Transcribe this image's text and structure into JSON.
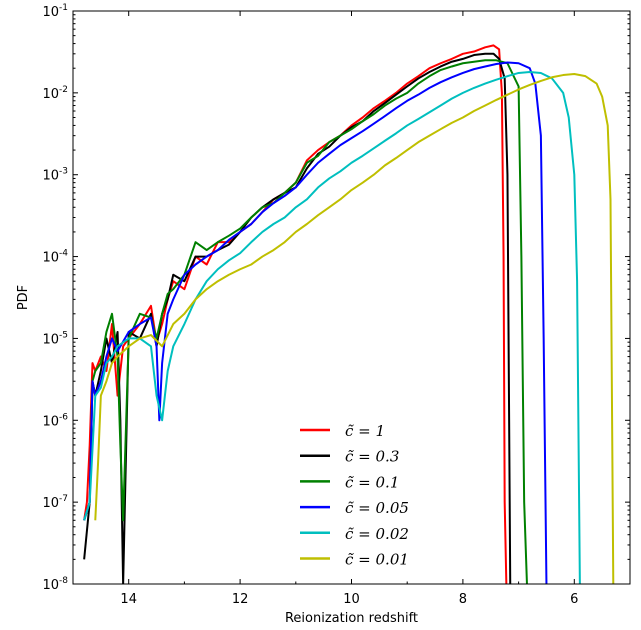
{
  "chart_data": {
    "type": "line",
    "xlabel": "Reionization redshift",
    "ylabel": "PDF",
    "xlim": [
      15.0,
      5.0
    ],
    "x_inverted": true,
    "yscale": "log",
    "ylim": [
      1e-08,
      0.1
    ],
    "x_ticks": [
      14,
      12,
      10,
      8,
      6
    ],
    "y_ticks": [
      {
        "value": 1e-08,
        "label_base": "10",
        "label_exp": "-8"
      },
      {
        "value": 1e-07,
        "label_base": "10",
        "label_exp": "-7"
      },
      {
        "value": 1e-06,
        "label_base": "10",
        "label_exp": "-6"
      },
      {
        "value": 1e-05,
        "label_base": "10",
        "label_exp": "-5"
      },
      {
        "value": 0.0001,
        "label_base": "10",
        "label_exp": "-4"
      },
      {
        "value": 0.001,
        "label_base": "10",
        "label_exp": "-3"
      },
      {
        "value": 0.01,
        "label_base": "10",
        "label_exp": "-2"
      },
      {
        "value": 0.1,
        "label_base": "10",
        "label_exp": "-1"
      }
    ],
    "grid": false,
    "legend_position": "lower-center",
    "series": [
      {
        "name": "c̃ = 1",
        "color": "#ff0000",
        "x": [
          14.8,
          14.75,
          14.7,
          14.65,
          14.6,
          14.5,
          14.4,
          14.3,
          14.2,
          14.1,
          14.0,
          13.8,
          13.6,
          13.5,
          13.4,
          13.3,
          13.2,
          13.0,
          12.8,
          12.6,
          12.4,
          12.2,
          12.0,
          11.8,
          11.6,
          11.4,
          11.2,
          11.0,
          10.8,
          10.6,
          10.4,
          10.2,
          10.0,
          9.8,
          9.6,
          9.4,
          9.2,
          9.0,
          8.8,
          8.6,
          8.4,
          8.2,
          8.0,
          7.8,
          7.6,
          7.45,
          7.35,
          7.3,
          7.27,
          7.25,
          7.22
        ],
        "y": [
          6e-08,
          1e-07,
          5e-07,
          5e-06,
          4e-06,
          6e-06,
          4e-06,
          1.5e-05,
          2e-06,
          8e-06,
          1e-05,
          1.5e-05,
          2.5e-05,
          9e-06,
          1.5e-05,
          3e-05,
          5e-05,
          4e-05,
          0.0001,
          8e-05,
          0.00015,
          0.00015,
          0.0002,
          0.00025,
          0.00035,
          0.0005,
          0.0006,
          0.0008,
          0.0015,
          0.002,
          0.0025,
          0.003,
          0.004,
          0.005,
          0.0065,
          0.008,
          0.01,
          0.013,
          0.016,
          0.02,
          0.023,
          0.026,
          0.03,
          0.032,
          0.036,
          0.038,
          0.034,
          0.01,
          0.0001,
          1e-07,
          1e-08
        ]
      },
      {
        "name": "c̃ = 0.3",
        "color": "#000000",
        "x": [
          14.8,
          14.7,
          14.65,
          14.6,
          14.5,
          14.4,
          14.3,
          14.2,
          14.15,
          14.1,
          14.0,
          13.8,
          13.6,
          13.5,
          13.4,
          13.3,
          13.2,
          13.0,
          12.8,
          12.6,
          12.4,
          12.2,
          12.0,
          11.8,
          11.6,
          11.4,
          11.2,
          11.0,
          10.8,
          10.6,
          10.4,
          10.2,
          10.0,
          9.8,
          9.6,
          9.4,
          9.2,
          9.0,
          8.8,
          8.6,
          8.4,
          8.2,
          8.0,
          7.8,
          7.6,
          7.45,
          7.35,
          7.25,
          7.2,
          7.17,
          7.15
        ],
        "y": [
          2e-08,
          1e-07,
          3e-06,
          2e-06,
          4e-06,
          1e-05,
          5e-06,
          1.2e-05,
          1e-06,
          1e-08,
          1.2e-05,
          1e-05,
          2e-05,
          8e-06,
          2e-05,
          3e-05,
          6e-05,
          5e-05,
          0.0001,
          0.0001,
          0.00012,
          0.00014,
          0.0002,
          0.0003,
          0.0004,
          0.0005,
          0.0006,
          0.0007,
          0.0012,
          0.0018,
          0.0022,
          0.003,
          0.0038,
          0.0045,
          0.006,
          0.0075,
          0.0095,
          0.012,
          0.015,
          0.018,
          0.021,
          0.024,
          0.026,
          0.029,
          0.03,
          0.03,
          0.026,
          0.015,
          0.001,
          1e-06,
          1e-08
        ]
      },
      {
        "name": "c̃ = 0.1",
        "color": "#008000",
        "x": [
          14.8,
          14.7,
          14.65,
          14.6,
          14.5,
          14.4,
          14.3,
          14.2,
          14.15,
          14.1,
          14.0,
          13.8,
          13.6,
          13.5,
          13.4,
          13.3,
          13.2,
          13.0,
          12.8,
          12.6,
          12.4,
          12.2,
          12.0,
          11.8,
          11.6,
          11.4,
          11.2,
          11.0,
          10.8,
          10.6,
          10.4,
          10.2,
          10.0,
          9.8,
          9.6,
          9.4,
          9.2,
          9.0,
          8.8,
          8.6,
          8.4,
          8.2,
          8.0,
          7.8,
          7.6,
          7.4,
          7.2,
          7.0,
          6.95,
          6.9,
          6.85
        ],
        "y": [
          6e-08,
          1e-07,
          3e-06,
          4e-06,
          5e-06,
          1.2e-05,
          2e-05,
          6e-06,
          5e-07,
          6e-08,
          1e-05,
          2e-05,
          1.8e-05,
          1e-05,
          2e-05,
          3.5e-05,
          4e-05,
          6e-05,
          0.00015,
          0.00012,
          0.00015,
          0.00018,
          0.00022,
          0.0003,
          0.0004,
          0.00045,
          0.0006,
          0.0008,
          0.0014,
          0.0017,
          0.0025,
          0.003,
          0.0036,
          0.0045,
          0.0055,
          0.007,
          0.0085,
          0.01,
          0.013,
          0.016,
          0.019,
          0.021,
          0.023,
          0.024,
          0.025,
          0.025,
          0.023,
          0.012,
          0.0001,
          1e-07,
          1e-08
        ]
      },
      {
        "name": "c̃ = 0.05",
        "color": "#0000ff",
        "x": [
          14.8,
          14.7,
          14.65,
          14.6,
          14.5,
          14.4,
          14.3,
          14.2,
          14.0,
          13.8,
          13.6,
          13.5,
          13.45,
          13.4,
          13.3,
          13.2,
          13.0,
          12.8,
          12.6,
          12.4,
          12.2,
          12.0,
          11.8,
          11.6,
          11.4,
          11.2,
          11.0,
          10.8,
          10.6,
          10.4,
          10.2,
          10.0,
          9.8,
          9.6,
          9.4,
          9.2,
          9.0,
          8.8,
          8.6,
          8.4,
          8.2,
          8.0,
          7.8,
          7.6,
          7.4,
          7.2,
          7.0,
          6.8,
          6.7,
          6.6,
          6.55,
          6.5
        ],
        "y": [
          6e-08,
          1e-07,
          3e-06,
          2e-06,
          3e-06,
          6e-06,
          1e-05,
          7e-06,
          1.2e-05,
          1.5e-05,
          1.8e-05,
          8e-06,
          1e-06,
          5e-06,
          2e-05,
          3e-05,
          6e-05,
          8e-05,
          0.0001,
          0.00012,
          0.00016,
          0.0002,
          0.00025,
          0.00035,
          0.00045,
          0.00055,
          0.0007,
          0.001,
          0.0014,
          0.0018,
          0.0023,
          0.0028,
          0.0034,
          0.0042,
          0.0052,
          0.0065,
          0.008,
          0.0095,
          0.0115,
          0.0135,
          0.0155,
          0.0175,
          0.0195,
          0.021,
          0.0225,
          0.0235,
          0.023,
          0.02,
          0.013,
          0.003,
          1e-05,
          1e-08
        ]
      },
      {
        "name": "c̃ = 0.02",
        "color": "#00bfbf",
        "x": [
          14.8,
          14.7,
          14.6,
          14.5,
          14.4,
          14.3,
          14.2,
          14.0,
          13.8,
          13.6,
          13.5,
          13.4,
          13.3,
          13.2,
          13.0,
          12.8,
          12.6,
          12.4,
          12.2,
          12.0,
          11.8,
          11.6,
          11.4,
          11.2,
          11.0,
          10.8,
          10.6,
          10.4,
          10.2,
          10.0,
          9.8,
          9.6,
          9.4,
          9.2,
          9.0,
          8.8,
          8.6,
          8.4,
          8.2,
          8.0,
          7.8,
          7.6,
          7.4,
          7.2,
          7.0,
          6.8,
          6.6,
          6.4,
          6.2,
          6.1,
          6.0,
          5.95,
          5.9
        ],
        "y": [
          6e-08,
          1e-07,
          2e-06,
          2.5e-06,
          5e-06,
          6e-06,
          8e-06,
          1e-05,
          1e-05,
          8e-06,
          2e-06,
          1e-06,
          4e-06,
          8e-06,
          1.5e-05,
          3e-05,
          5e-05,
          7e-05,
          9e-05,
          0.00011,
          0.00015,
          0.0002,
          0.00025,
          0.0003,
          0.0004,
          0.0005,
          0.0007,
          0.0009,
          0.0011,
          0.0014,
          0.0017,
          0.0021,
          0.0026,
          0.0032,
          0.004,
          0.0048,
          0.0058,
          0.007,
          0.0085,
          0.01,
          0.0115,
          0.013,
          0.0145,
          0.016,
          0.0175,
          0.018,
          0.0175,
          0.015,
          0.01,
          0.005,
          0.001,
          5e-05,
          1e-08
        ]
      },
      {
        "name": "c̃ = 0.01",
        "color": "#bfbf00",
        "x": [
          14.6,
          14.55,
          14.5,
          14.4,
          14.3,
          14.2,
          14.0,
          13.8,
          13.6,
          13.4,
          13.2,
          13.0,
          12.8,
          12.6,
          12.4,
          12.2,
          12.0,
          11.8,
          11.6,
          11.4,
          11.2,
          11.0,
          10.8,
          10.6,
          10.4,
          10.2,
          10.0,
          9.8,
          9.6,
          9.4,
          9.2,
          9.0,
          8.8,
          8.6,
          8.4,
          8.2,
          8.0,
          7.8,
          7.6,
          7.4,
          7.2,
          7.0,
          6.8,
          6.6,
          6.4,
          6.2,
          6.0,
          5.8,
          5.6,
          5.5,
          5.4,
          5.35,
          5.3
        ],
        "y": [
          6e-08,
          3e-07,
          2e-06,
          3e-06,
          5e-06,
          6e-06,
          8e-06,
          1e-05,
          1.1e-05,
          8e-06,
          1.5e-05,
          2e-05,
          3e-05,
          4e-05,
          5e-05,
          6e-05,
          7e-05,
          8e-05,
          0.0001,
          0.00012,
          0.00015,
          0.0002,
          0.00025,
          0.00032,
          0.0004,
          0.0005,
          0.00065,
          0.0008,
          0.001,
          0.0013,
          0.0016,
          0.002,
          0.0025,
          0.003,
          0.0036,
          0.0043,
          0.005,
          0.006,
          0.007,
          0.0082,
          0.0095,
          0.011,
          0.0125,
          0.014,
          0.0155,
          0.0165,
          0.017,
          0.016,
          0.013,
          0.009,
          0.004,
          0.0005,
          1e-08
        ]
      }
    ]
  }
}
